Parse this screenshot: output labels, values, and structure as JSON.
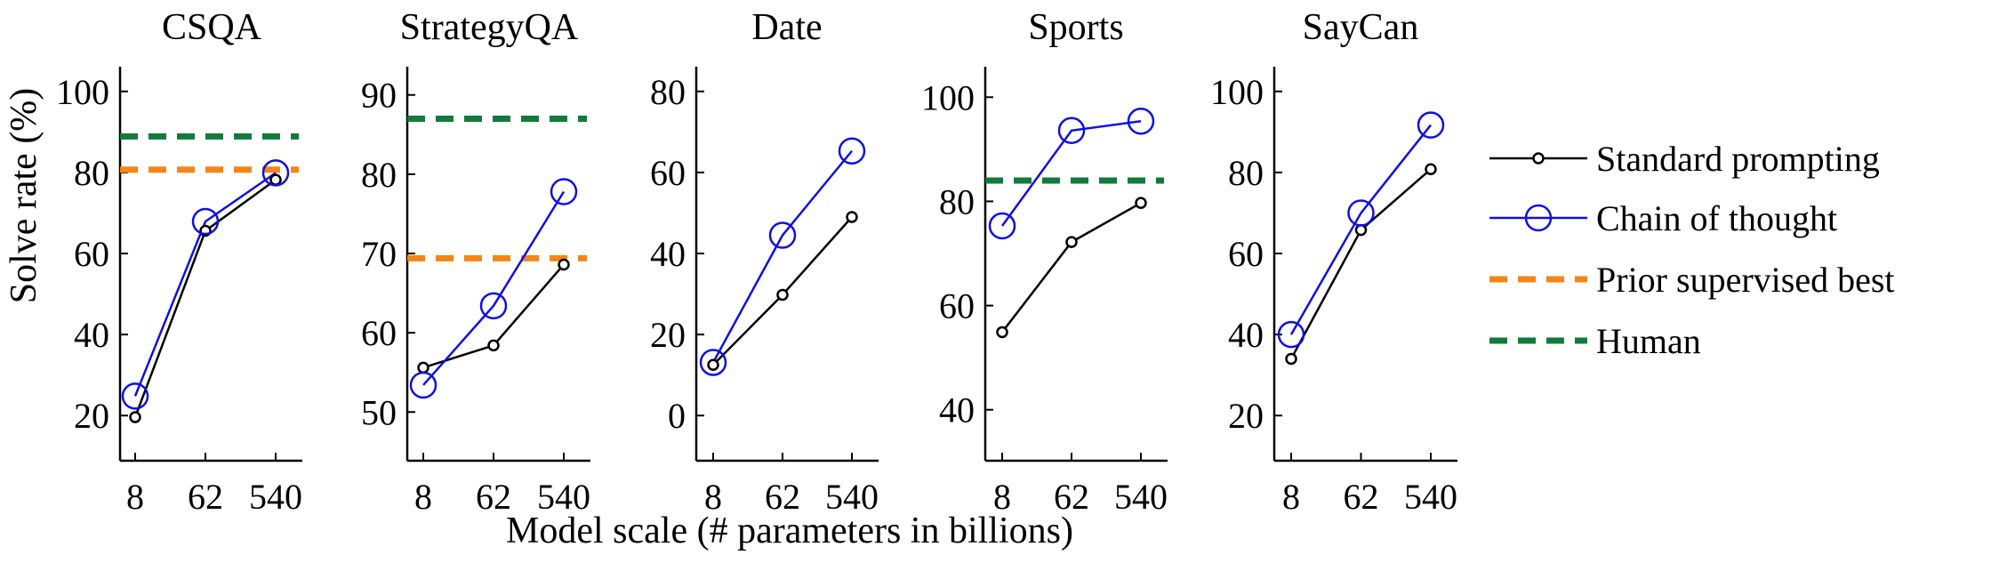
{
  "colors": {
    "standard": "#000000",
    "cot": "#1010e0",
    "prior": "#f58518",
    "human": "#137a3e"
  },
  "y_axis_label": "Solve rate (%)",
  "x_axis_label": "Model scale (# parameters in billions)",
  "legend": {
    "standard": "Standard prompting",
    "cot": "Chain of thought",
    "prior": "Prior supervised best",
    "human": "Human"
  },
  "chart_data": [
    {
      "type": "line",
      "title": "CSQA",
      "categories": [
        "8",
        "62",
        "540"
      ],
      "ylim": [
        15,
        105
      ],
      "yticks": [
        20,
        40,
        60,
        80,
        100
      ],
      "series": [
        {
          "name": "Standard prompting",
          "key": "standard",
          "values": [
            19.6,
            65.6,
            78.2
          ]
        },
        {
          "name": "Chain of thought",
          "key": "cot",
          "values": [
            24.8,
            67.9,
            79.9
          ]
        }
      ],
      "hlines": [
        {
          "name": "Human",
          "key": "human",
          "value": 88.9
        },
        {
          "name": "Prior supervised best",
          "key": "prior",
          "value": 80.7
        }
      ]
    },
    {
      "type": "line",
      "title": "StrategyQA",
      "categories": [
        "8",
        "62",
        "540"
      ],
      "ylim": [
        47,
        93
      ],
      "yticks": [
        50,
        60,
        70,
        80,
        90
      ],
      "series": [
        {
          "name": "Standard prompting",
          "key": "standard",
          "values": [
            55.6,
            58.4,
            68.6
          ]
        },
        {
          "name": "Chain of thought",
          "key": "cot",
          "values": [
            53.4,
            63.4,
            77.8
          ]
        }
      ],
      "hlines": [
        {
          "name": "Human",
          "key": "human",
          "value": 87.0
        },
        {
          "name": "Prior supervised best",
          "key": "prior",
          "value": 69.4
        }
      ]
    },
    {
      "type": "line",
      "title": "Date",
      "categories": [
        "8",
        "62",
        "540"
      ],
      "ylim": [
        -5,
        85
      ],
      "yticks": [
        0,
        20,
        40,
        60,
        80
      ],
      "series": [
        {
          "name": "Standard prompting",
          "key": "standard",
          "values": [
            12.5,
            29.8,
            49.0
          ]
        },
        {
          "name": "Chain of thought",
          "key": "cot",
          "values": [
            13.1,
            44.5,
            65.3
          ]
        }
      ],
      "hlines": []
    },
    {
      "type": "line",
      "title": "Sports",
      "categories": [
        "8",
        "62",
        "540"
      ],
      "ylim": [
        35,
        105
      ],
      "yticks": [
        40,
        60,
        80,
        100
      ],
      "series": [
        {
          "name": "Standard prompting",
          "key": "standard",
          "values": [
            54.9,
            72.2,
            79.7
          ]
        },
        {
          "name": "Chain of thought",
          "key": "cot",
          "values": [
            75.3,
            93.6,
            95.4
          ]
        }
      ],
      "hlines": [
        {
          "name": "Human",
          "key": "human",
          "value": 84.0
        }
      ]
    },
    {
      "type": "line",
      "title": "SayCan",
      "categories": [
        "8",
        "62",
        "540"
      ],
      "ylim": [
        15,
        105
      ],
      "yticks": [
        20,
        40,
        60,
        80,
        100
      ],
      "series": [
        {
          "name": "Standard prompting",
          "key": "standard",
          "values": [
            34.0,
            65.8,
            80.8
          ]
        },
        {
          "name": "Chain of thought",
          "key": "cot",
          "values": [
            40.0,
            70.0,
            91.7
          ]
        }
      ],
      "hlines": []
    }
  ]
}
